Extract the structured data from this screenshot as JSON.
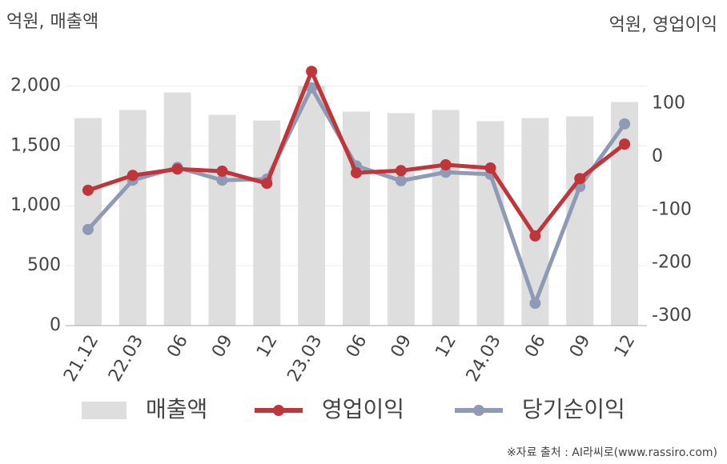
{
  "chart_data": {
    "type": "bar-line",
    "y_label": "억원, 매출액",
    "y2_label": "억원, 영업이익",
    "source": "※자료 출처 : AI라씨로(www.rassiro.com)",
    "categories": [
      "21.12",
      "22.03",
      "06",
      "09",
      "12",
      "23.03",
      "06",
      "09",
      "12",
      "24.03",
      "06",
      "09",
      "12"
    ],
    "ylim": [
      0,
      2250
    ],
    "yticks": [
      0,
      500,
      {
        "value": 1000,
        "label": "1,000"
      },
      {
        "value": 1500,
        "label": "1,500"
      },
      {
        "value": 2000,
        "label": "2,000"
      }
    ],
    "y2lim": [
      -318,
      190
    ],
    "y2ticks": [
      -300,
      -200,
      -100,
      0,
      100
    ],
    "grid": true,
    "series": [
      {
        "name": "매출액",
        "type": "bar",
        "color": "#dedede",
        "values": [
          1732,
          1800,
          1946,
          1759,
          1712,
          2000,
          1786,
          1773,
          1800,
          1706,
          1732,
          1746,
          1866
        ]
      },
      {
        "name": "영업이익",
        "type": "line",
        "axis": "y2",
        "color": "#c0353a",
        "values": [
          -63,
          -35,
          -23,
          -27,
          -50,
          161,
          -30,
          -26,
          -15,
          -21,
          -149,
          -41,
          24
        ]
      },
      {
        "name": "당기순이익",
        "type": "line",
        "axis": "y2",
        "color": "#8f9ab5",
        "values": [
          -137,
          -44,
          -20,
          -44,
          -42,
          130,
          -17,
          -45,
          -29,
          -33,
          -276,
          -56,
          62
        ]
      }
    ]
  }
}
